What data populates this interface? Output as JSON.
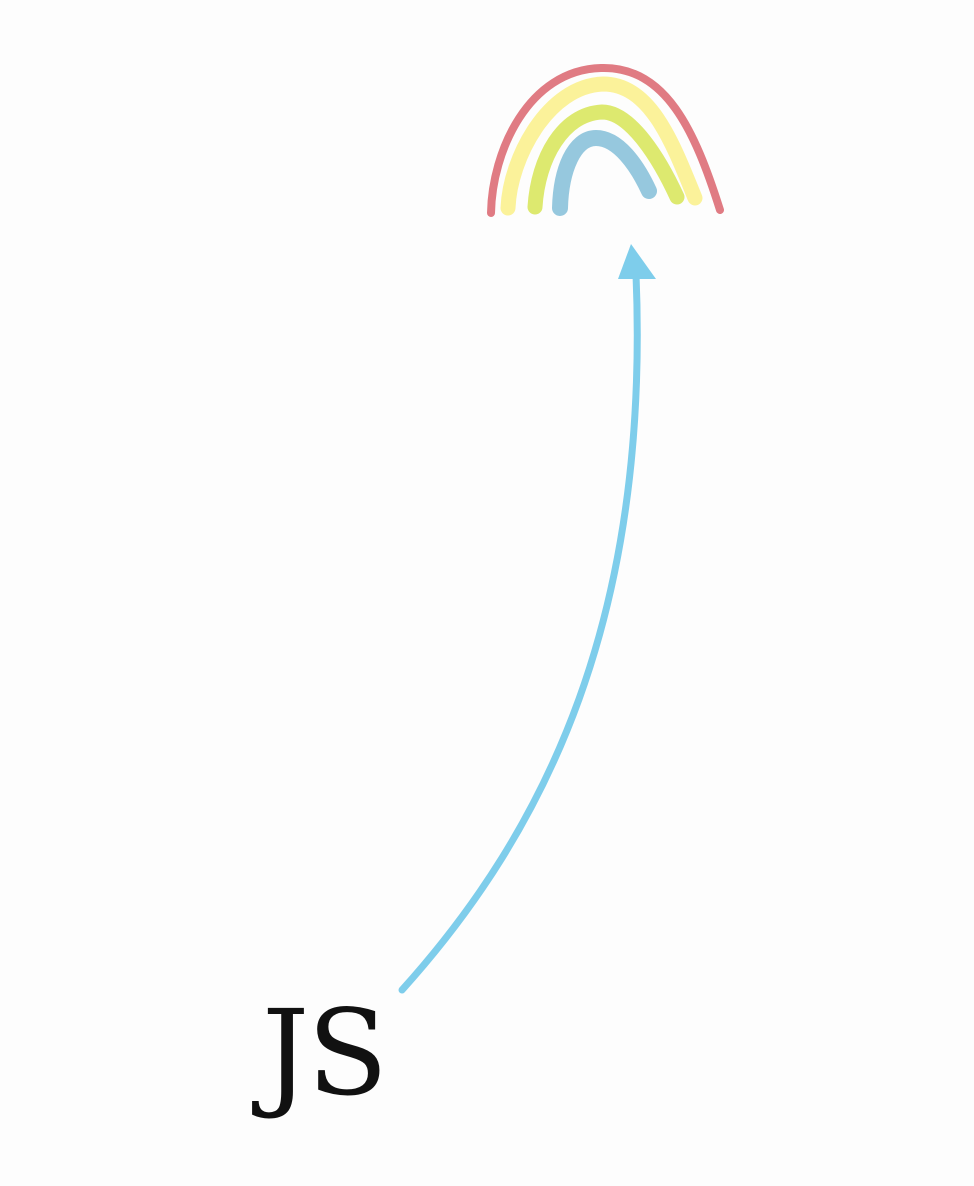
{
  "diagram": {
    "source_label": "JS",
    "target_icon": "rainbow-icon",
    "connector_icon": "arrow-up-icon"
  },
  "colors": {
    "background": "#fdfdfd",
    "label_text": "#111111",
    "arrow": "#7ecdeb",
    "rainbow_outer": "#e07b83",
    "rainbow_second": "#fbf29a",
    "rainbow_third": "#dde96f",
    "rainbow_inner": "#96c8de"
  }
}
